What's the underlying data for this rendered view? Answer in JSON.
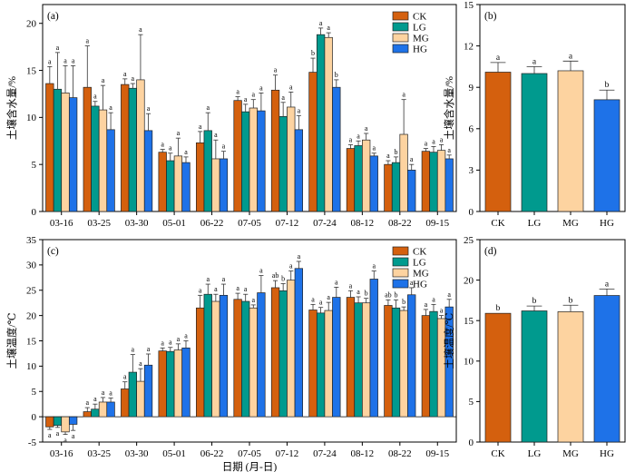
{
  "colors": {
    "CK": "#d4600e",
    "LG": "#009a8e",
    "MG": "#fdd3a0",
    "HG": "#1e72e8"
  },
  "xlabel_shared": "日期 (月-日)",
  "chart_data": [
    {
      "id": "a",
      "panel_label": "(a)",
      "type": "bar",
      "ylabel": "土壤含水量/%",
      "ylim": [
        0,
        22
      ],
      "yticks": [
        0,
        5,
        10,
        15,
        20
      ],
      "legend": [
        "CK",
        "LG",
        "MG",
        "HG"
      ],
      "legend_position": "top-right",
      "categories": [
        "03-16",
        "03-25",
        "03-30",
        "05-01",
        "06-22",
        "07-05",
        "07-12",
        "07-24",
        "08-12",
        "08-22",
        "09-15"
      ],
      "series": [
        {
          "name": "CK",
          "values": [
            13.6,
            13.2,
            13.5,
            6.3,
            7.3,
            11.8,
            12.9,
            14.8,
            6.7,
            5.0,
            6.4
          ],
          "errors": [
            1.8,
            4.4,
            0.6,
            0.3,
            1.2,
            0.4,
            1.6,
            1.5,
            0.4,
            0.4,
            0.3
          ],
          "labels": [
            "a",
            "a",
            "a",
            "a",
            "a",
            "a",
            "a",
            "b",
            "a",
            "a",
            "a"
          ]
        },
        {
          "name": "LG",
          "values": [
            13.0,
            11.2,
            13.1,
            5.4,
            8.6,
            10.6,
            10.1,
            18.8,
            7.0,
            5.2,
            6.3
          ],
          "errors": [
            3.9,
            0.5,
            0.5,
            0.8,
            1.9,
            0.8,
            1.5,
            0.7,
            0.5,
            0.6,
            0.6
          ],
          "labels": [
            "a",
            "a",
            "a",
            "a",
            "a",
            "a",
            "a",
            "a",
            "a",
            "b",
            "a"
          ]
        },
        {
          "name": "MG",
          "values": [
            12.6,
            10.8,
            14.0,
            5.9,
            5.6,
            11.0,
            11.1,
            18.5,
            7.6,
            8.2,
            6.5
          ],
          "errors": [
            2.9,
            2.6,
            4.8,
            1.9,
            2.0,
            0.9,
            1.6,
            0.5,
            0.7,
            3.7,
            0.6
          ],
          "labels": [
            "a",
            "a",
            "a",
            "a",
            "a",
            "a",
            "a",
            "a",
            "a",
            "a",
            "a"
          ]
        },
        {
          "name": "HG",
          "values": [
            12.1,
            8.7,
            8.6,
            5.2,
            5.6,
            10.7,
            8.7,
            13.2,
            5.9,
            4.4,
            5.6
          ],
          "errors": [
            3.4,
            1.8,
            1.8,
            0.6,
            0.8,
            1.9,
            1.5,
            0.8,
            0.3,
            0.6,
            0.4
          ],
          "labels": [
            "a",
            "a",
            "a",
            "a",
            "a",
            "a",
            "a",
            "b",
            "a",
            "a",
            "a"
          ]
        }
      ]
    },
    {
      "id": "b",
      "panel_label": "(b)",
      "type": "bar",
      "ylabel": "土壤含水量/%",
      "ylim": [
        0,
        15
      ],
      "yticks": [
        0,
        3,
        6,
        9,
        12,
        15
      ],
      "categories": [
        "CK",
        "LG",
        "MG",
        "HG"
      ],
      "values": [
        10.1,
        10.0,
        10.2,
        8.1
      ],
      "errors": [
        0.7,
        0.5,
        0.7,
        0.7
      ],
      "labels": [
        "a",
        "a",
        "a",
        "b"
      ]
    },
    {
      "id": "c",
      "panel_label": "(c)",
      "type": "bar",
      "ylabel": "土壤温度/℃",
      "xlabel": "日期 (月-日)",
      "ylim": [
        -5,
        35
      ],
      "yticks": [
        -5,
        0,
        5,
        10,
        15,
        20,
        25,
        30,
        35
      ],
      "legend": [
        "CK",
        "LG",
        "MG",
        "HG"
      ],
      "legend_position": "top-right",
      "categories": [
        "03-16",
        "03-25",
        "03-30",
        "05-01",
        "06-22",
        "07-05",
        "07-12",
        "07-24",
        "08-12",
        "08-22",
        "09-15"
      ],
      "series": [
        {
          "name": "CK",
          "values": [
            -2.0,
            1.0,
            5.5,
            13.0,
            21.5,
            23.2,
            25.5,
            21.1,
            23.6,
            22.0,
            20.0
          ],
          "errors": [
            0.5,
            0.8,
            1.4,
            0.6,
            2.5,
            1.2,
            1.4,
            1.1,
            1.3,
            1.1,
            1.2
          ],
          "labels": [
            "a",
            "a",
            "a",
            "a",
            "a",
            "a",
            "ab",
            "a",
            "a",
            "ab",
            "a"
          ]
        },
        {
          "name": "LG",
          "values": [
            -1.7,
            1.5,
            8.8,
            12.9,
            24.2,
            22.8,
            24.9,
            20.5,
            22.5,
            21.5,
            20.8
          ],
          "errors": [
            0.4,
            1.0,
            3.5,
            0.8,
            2.0,
            1.4,
            1.4,
            1.1,
            1.2,
            1.6,
            1.4
          ],
          "labels": [
            "a",
            "a",
            "a",
            "a",
            "a",
            "a",
            "b",
            "a",
            "a",
            "b",
            "a"
          ]
        },
        {
          "name": "MG",
          "values": [
            -3.0,
            2.9,
            7.0,
            13.2,
            22.8,
            21.5,
            27.0,
            21.0,
            22.5,
            21.0,
            19.4
          ],
          "errors": [
            0.5,
            0.9,
            2.5,
            1.2,
            1.4,
            0.6,
            1.8,
            1.6,
            0.9,
            0.7,
            0.6
          ],
          "labels": [
            "a",
            "a",
            "a",
            "a",
            "a",
            "a",
            "a",
            "a",
            "b",
            "b",
            "a"
          ]
        },
        {
          "name": "HG",
          "values": [
            -1.5,
            2.9,
            10.2,
            13.6,
            24.0,
            24.5,
            29.3,
            23.6,
            27.2,
            24.1,
            21.7
          ],
          "errors": [
            1.2,
            0.8,
            2.2,
            1.4,
            2.2,
            3.4,
            1.4,
            2.0,
            1.6,
            1.4,
            1.5
          ],
          "labels": [
            "a",
            "a",
            "a",
            "a",
            "a",
            "a",
            "a",
            "a",
            "a",
            "a",
            "a"
          ]
        }
      ]
    },
    {
      "id": "d",
      "panel_label": "(d)",
      "type": "bar",
      "ylabel": "土壤温度/℃",
      "ylim": [
        0,
        25
      ],
      "yticks": [
        0,
        5,
        10,
        15,
        20,
        25
      ],
      "categories": [
        "CK",
        "LG",
        "MG",
        "HG"
      ],
      "values": [
        15.9,
        16.2,
        16.1,
        18.1
      ],
      "errors": [
        0.0,
        0.6,
        0.8,
        0.8
      ],
      "labels": [
        "b",
        "b",
        "b",
        "a"
      ]
    }
  ]
}
